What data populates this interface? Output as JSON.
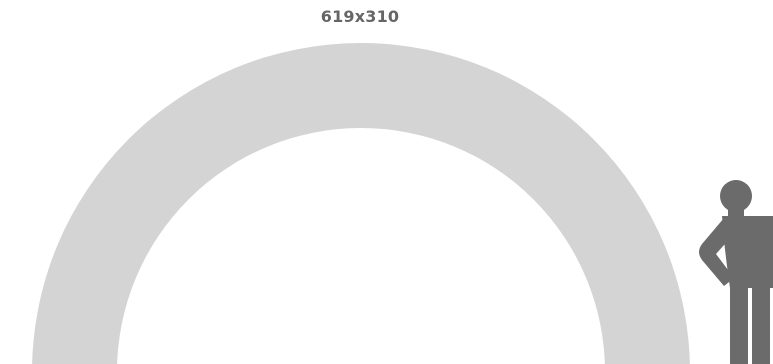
{
  "dimensions_label": "619x310",
  "colors": {
    "arch": "#d4d4d4",
    "figure": "#6b6b6b",
    "label": "#666666",
    "background": "#ffffff"
  },
  "icons": {
    "arch": "arch-shape",
    "figure": "person-silhouette-icon"
  }
}
